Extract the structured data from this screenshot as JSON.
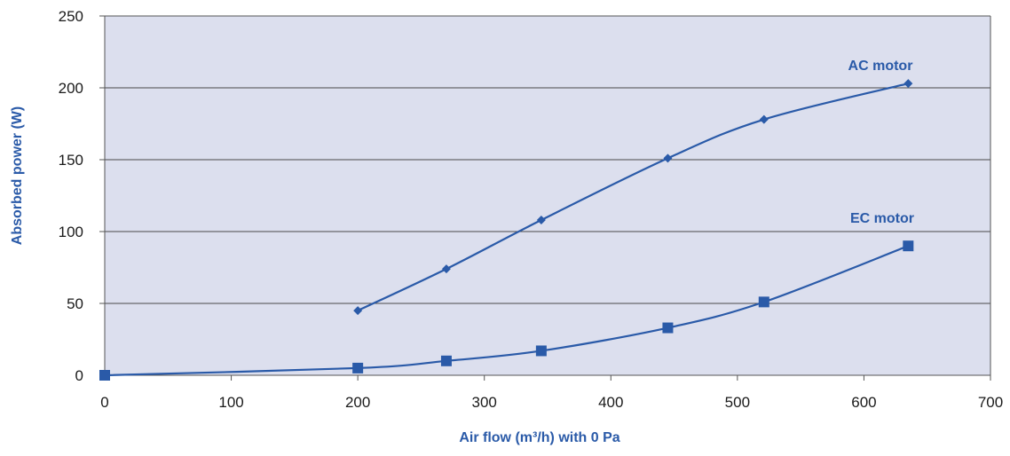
{
  "chart_data": {
    "type": "line",
    "xlabel": "Air flow (m³/h) with 0 Pa",
    "ylabel": "Absorbed power (W)",
    "xlim": [
      0,
      700
    ],
    "ylim": [
      0,
      250
    ],
    "x_ticks": [
      0,
      100,
      200,
      300,
      400,
      500,
      600,
      700
    ],
    "y_ticks": [
      0,
      50,
      100,
      150,
      200,
      250
    ],
    "grid": "horizontal",
    "series": [
      {
        "name": "AC motor",
        "marker": "diamond",
        "color": "#2a5aa8",
        "x": [
          200,
          270,
          345,
          445,
          521,
          635
        ],
        "y": [
          45,
          74,
          108,
          151,
          178,
          203
        ]
      },
      {
        "name": "EC motor",
        "marker": "square",
        "color": "#2a5aa8",
        "x": [
          0,
          200,
          270,
          345,
          445,
          521,
          635
        ],
        "y": [
          0,
          5,
          10,
          17,
          33,
          51,
          90
        ]
      }
    ]
  },
  "colors": {
    "plot_background": "#dcdfee",
    "series": "#2a5aa8",
    "gridline": "#4a4a4a"
  }
}
